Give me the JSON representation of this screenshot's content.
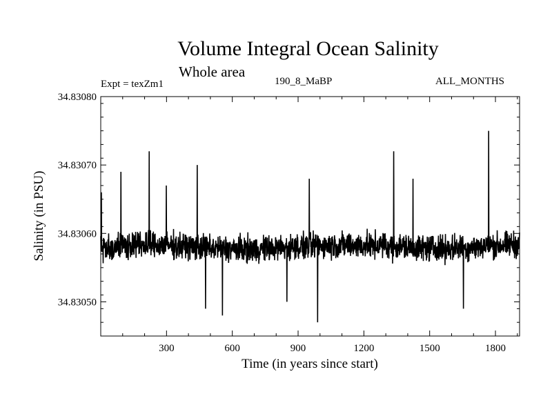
{
  "chart_data": {
    "type": "line",
    "title": "Volume Integral Ocean Salinity",
    "subtitle": "Whole area",
    "left_label": "Expt = texZm1",
    "center_label": "190_8_MaBP",
    "right_label": "ALL_MONTHS",
    "xlabel": "Time (in years since start)",
    "ylabel": "Salinity (in PSU)",
    "xlim": [
      0,
      1910
    ],
    "ylim": [
      34.83045,
      34.8308
    ],
    "xticks": [
      300,
      600,
      900,
      1200,
      1500,
      1800
    ],
    "yticks": [
      34.8305,
      34.8306,
      34.8307,
      34.8308
    ],
    "ytick_labels": [
      "34.83050",
      "34.83060",
      "34.83070",
      "34.83080"
    ],
    "grid": false,
    "series": [
      {
        "name": "Salinity",
        "color": "#000000",
        "baseline": 34.83058,
        "noise_amplitude": 2.2e-05,
        "peaks": [
          {
            "x": 3,
            "y": 34.83066
          },
          {
            "x": 92,
            "y": 34.83069
          },
          {
            "x": 221,
            "y": 34.83072
          },
          {
            "x": 299,
            "y": 34.83067
          },
          {
            "x": 440,
            "y": 34.8307
          },
          {
            "x": 951,
            "y": 34.83068
          },
          {
            "x": 1336,
            "y": 34.83072
          },
          {
            "x": 1424,
            "y": 34.83068
          },
          {
            "x": 1769,
            "y": 34.83075
          }
        ],
        "troughs": [
          {
            "x": 478,
            "y": 34.83049
          },
          {
            "x": 555,
            "y": 34.83048
          },
          {
            "x": 849,
            "y": 34.8305
          },
          {
            "x": 989,
            "y": 34.83047
          },
          {
            "x": 1654,
            "y": 34.83049
          }
        ]
      }
    ]
  }
}
